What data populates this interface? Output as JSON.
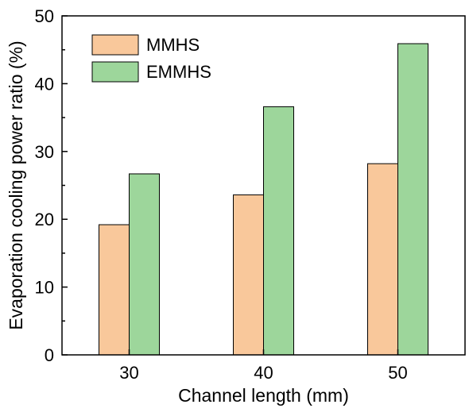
{
  "chart_data": {
    "type": "bar",
    "title": "",
    "xlabel": "Channel length (mm)",
    "ylabel": "Evaporation cooling power ratio (%)",
    "categories": [
      "30",
      "40",
      "50"
    ],
    "series": [
      {
        "name": "MMHS",
        "values": [
          19.2,
          23.6,
          28.2
        ],
        "color": "#f9c89b"
      },
      {
        "name": "EMMHS",
        "values": [
          26.7,
          36.6,
          45.9
        ],
        "color": "#9dd69b"
      }
    ],
    "ylim": [
      0,
      50
    ],
    "yticks": [
      "0",
      "10",
      "20",
      "30",
      "40",
      "50"
    ],
    "grid": false,
    "legend_position": "top-left"
  }
}
